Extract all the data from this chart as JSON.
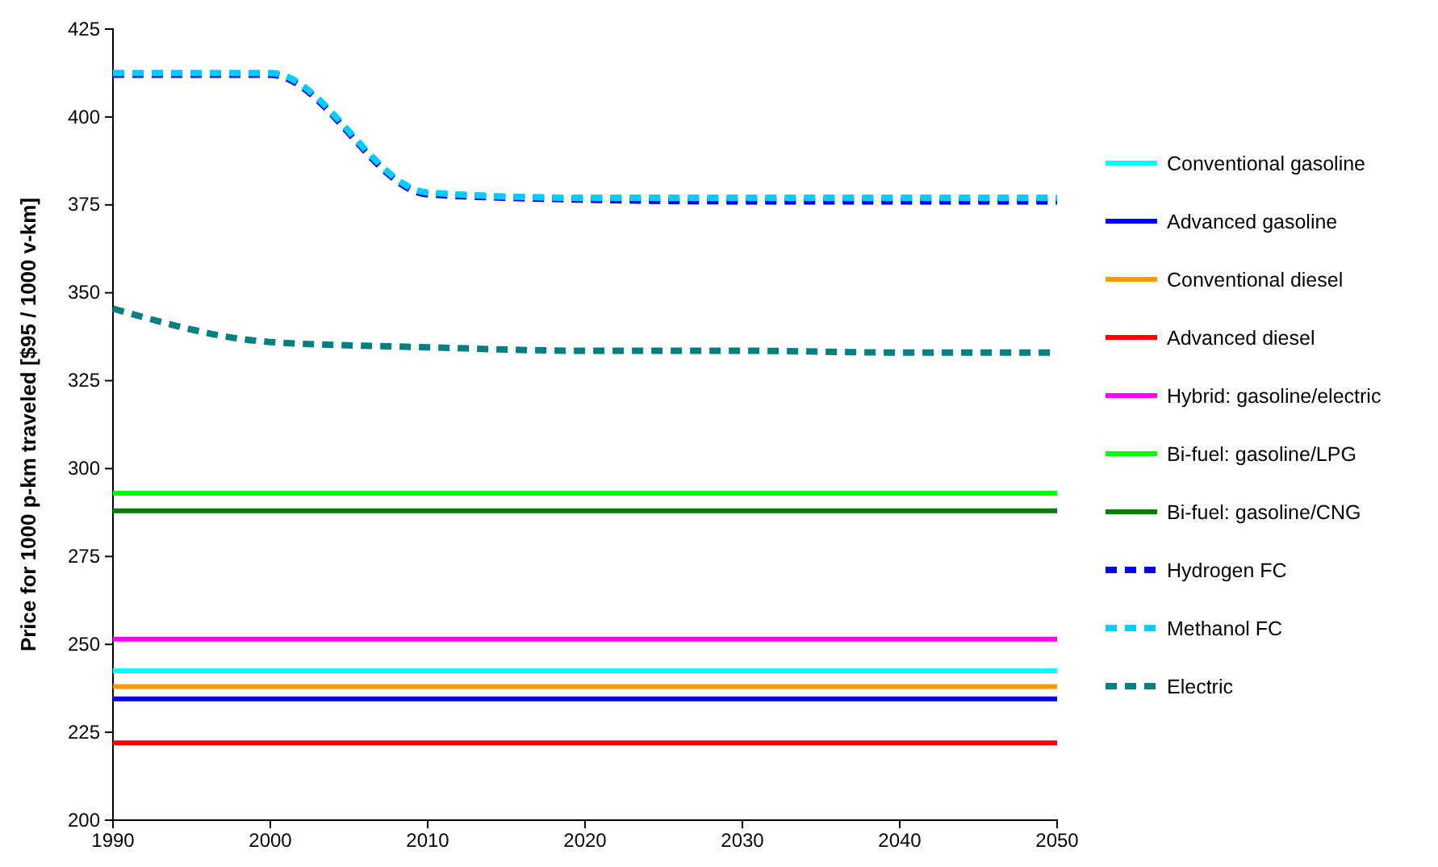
{
  "chart_data": {
    "type": "line",
    "ylabel": "Price for 1000 p-km traveled [$95 / 1000 v-km]",
    "x": [
      1990,
      2000,
      2010,
      2020,
      2030,
      2040,
      2050
    ],
    "xlim": [
      1990,
      2050
    ],
    "xticks": [
      1990,
      2000,
      2010,
      2020,
      2030,
      2040,
      2050
    ],
    "ylim": [
      200,
      425
    ],
    "yticks": [
      200,
      225,
      250,
      275,
      300,
      325,
      350,
      375,
      400,
      425
    ],
    "grid": false,
    "legend": "right",
    "marker": "none",
    "series": [
      {
        "name": "Conventional gasoline",
        "color": "#00ffff",
        "line_style": "solid",
        "values": [
          242.5,
          242.5,
          242.5,
          242.5,
          242.5,
          242.5,
          242.5
        ]
      },
      {
        "name": "Advanced gasoline",
        "color": "#0000ff",
        "line_style": "solid",
        "values": [
          234.5,
          234.5,
          234.5,
          234.5,
          234.5,
          234.5,
          234.5
        ]
      },
      {
        "name": "Conventional diesel",
        "color": "#ff9900",
        "line_style": "solid",
        "values": [
          238,
          238,
          238,
          238,
          238,
          238,
          238
        ]
      },
      {
        "name": "Advanced diesel",
        "color": "#ff0000",
        "line_style": "solid",
        "values": [
          222,
          222,
          222,
          222,
          222,
          222,
          222
        ]
      },
      {
        "name": "Hybrid: gasoline/electric",
        "color": "#ff00ff",
        "line_style": "solid",
        "values": [
          251.5,
          251.5,
          251.5,
          251.5,
          251.5,
          251.5,
          251.5
        ]
      },
      {
        "name": "Bi-fuel: gasoline/LPG",
        "color": "#00ff00",
        "line_style": "solid",
        "values": [
          293,
          293,
          293,
          293,
          293,
          293,
          293
        ]
      },
      {
        "name": "Bi-fuel: gasoline/CNG",
        "color": "#008000",
        "line_style": "solid",
        "values": [
          288,
          288,
          288,
          288,
          288,
          288,
          288
        ]
      },
      {
        "name": "Hydrogen FC",
        "color": "#0000ff",
        "line_style": "dashed",
        "values": [
          412,
          412,
          378,
          376.5,
          376,
          376,
          376
        ]
      },
      {
        "name": "Methanol FC",
        "color": "#00ccff",
        "line_style": "dashed",
        "values": [
          412.5,
          412.5,
          378.5,
          377,
          377,
          377,
          377
        ]
      },
      {
        "name": "Electric",
        "color": "#008080",
        "line_style": "dashed",
        "values": [
          345.5,
          336,
          334.5,
          333.5,
          333.5,
          333,
          333
        ]
      }
    ]
  }
}
